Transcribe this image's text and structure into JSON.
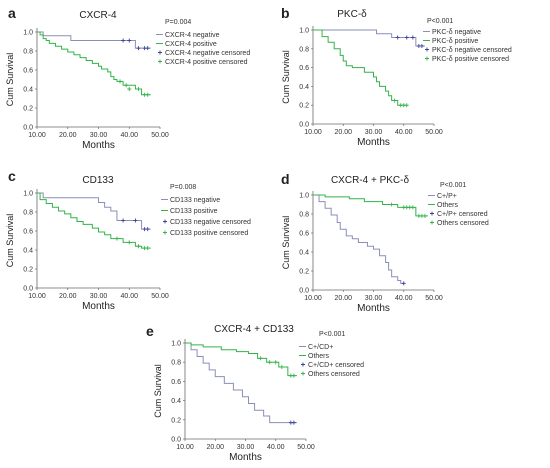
{
  "colors": {
    "negative": "#8a8fb8",
    "positive": "#33b34a",
    "censored_negative": "#3a3f9a",
    "censored_positive": "#33b34a",
    "axis": "#6a6a6a"
  },
  "chart_data": [
    {
      "type": "line",
      "panel_letter": "a",
      "title": "CXCR-4",
      "p_value": "P=0.004",
      "xlabel": "Months",
      "ylabel": "Cum Survival",
      "xlim": [
        10,
        50
      ],
      "ylim": [
        0,
        1
      ],
      "xticks": [
        "10.00",
        "20.00",
        "30.00",
        "40.00",
        "50.00"
      ],
      "yticks": [
        "0.0",
        "0.2",
        "0.4",
        "0.6",
        "0.8",
        "1.0"
      ],
      "legend": [
        "CXCR-4 negative",
        "CXCR-4 positive",
        "CXCR-4 negative censored",
        "CXCR-4 positive censored"
      ],
      "series": [
        {
          "name": "CXCR-4 negative",
          "role": "negative",
          "x": [
            10,
            11,
            12,
            20,
            21,
            36,
            42,
            47
          ],
          "y": [
            1.0,
            1.0,
            0.96,
            0.96,
            0.91,
            0.91,
            0.83,
            0.83
          ],
          "censored": [
            [
              38,
              0.91
            ],
            [
              40,
              0.91
            ],
            [
              43,
              0.83
            ],
            [
              45,
              0.83
            ],
            [
              46,
              0.83
            ]
          ]
        },
        {
          "name": "CXCR-4 positive",
          "role": "positive",
          "x": [
            10,
            11,
            12,
            13,
            14,
            16,
            18,
            20,
            22,
            24,
            26,
            28,
            30,
            31,
            33,
            34,
            35,
            36,
            38,
            42,
            44,
            47
          ],
          "y": [
            1.0,
            0.97,
            0.93,
            0.91,
            0.88,
            0.85,
            0.82,
            0.79,
            0.76,
            0.73,
            0.7,
            0.67,
            0.64,
            0.61,
            0.58,
            0.53,
            0.5,
            0.48,
            0.44,
            0.4,
            0.34,
            0.34
          ],
          "censored": [
            [
              37,
              0.48
            ],
            [
              39,
              0.44
            ],
            [
              40,
              0.4
            ],
            [
              43,
              0.4
            ],
            [
              45,
              0.34
            ],
            [
              46,
              0.34
            ]
          ]
        }
      ]
    },
    {
      "type": "line",
      "panel_letter": "b",
      "title": "PKC-δ",
      "p_value": "P<0.001",
      "xlabel": "Months",
      "ylabel": "Cum Survival",
      "xlim": [
        10,
        50
      ],
      "ylim": [
        0,
        1
      ],
      "xticks": [
        "10.00",
        "20.00",
        "30.00",
        "40.00",
        "50.00"
      ],
      "yticks": [
        "0.0",
        "0.2",
        "0.4",
        "0.6",
        "0.8",
        "1.0"
      ],
      "legend": [
        "PKC-δ negative",
        "PKC-δ positive",
        "PKC-δ negative censored",
        "PKC-δ positive censored"
      ],
      "series": [
        {
          "name": "PKC-δ negative",
          "role": "negative",
          "x": [
            10,
            30,
            31,
            34,
            36,
            40,
            44,
            47
          ],
          "y": [
            1.0,
            1.0,
            0.96,
            0.96,
            0.92,
            0.92,
            0.83,
            0.83
          ],
          "censored": [
            [
              38,
              0.92
            ],
            [
              41,
              0.92
            ],
            [
              43,
              0.92
            ],
            [
              45,
              0.83
            ],
            [
              46,
              0.83
            ]
          ]
        },
        {
          "name": "PKC-δ positive",
          "role": "positive",
          "x": [
            10,
            13,
            15,
            17,
            19,
            20,
            21,
            23,
            25,
            27,
            30,
            31,
            32,
            34,
            35,
            36,
            38,
            41
          ],
          "y": [
            1.0,
            0.93,
            0.87,
            0.8,
            0.73,
            0.67,
            0.62,
            0.6,
            0.6,
            0.55,
            0.5,
            0.45,
            0.4,
            0.35,
            0.3,
            0.25,
            0.2,
            0.2
          ],
          "censored": [
            [
              37,
              0.25
            ],
            [
              39,
              0.2
            ],
            [
              40,
              0.2
            ],
            [
              41,
              0.2
            ]
          ]
        }
      ]
    },
    {
      "type": "line",
      "panel_letter": "c",
      "title": "CD133",
      "p_value": "P=0.008",
      "xlabel": "Months",
      "ylabel": "Cum Survival",
      "xlim": [
        10,
        50
      ],
      "ylim": [
        0,
        1
      ],
      "xticks": [
        "10.00",
        "20.00",
        "30.00",
        "40.00",
        "50.00"
      ],
      "yticks": [
        "0.0",
        "0.2",
        "0.4",
        "0.6",
        "0.8",
        "1.0"
      ],
      "legend": [
        "CD133 negative",
        "CD133 positive",
        "CD133 negative censored",
        "CD133 positive censored"
      ],
      "series": [
        {
          "name": "CD133 negative",
          "role": "negative",
          "x": [
            10,
            12,
            28,
            30,
            32,
            34,
            36,
            40,
            44,
            47
          ],
          "y": [
            1.0,
            0.95,
            0.95,
            0.9,
            0.85,
            0.81,
            0.71,
            0.71,
            0.62,
            0.62
          ],
          "censored": [
            [
              38,
              0.71
            ],
            [
              42,
              0.71
            ],
            [
              45,
              0.62
            ],
            [
              46,
              0.62
            ]
          ]
        },
        {
          "name": "CD133 positive",
          "role": "positive",
          "x": [
            10,
            11,
            13,
            15,
            17,
            19,
            21,
            23,
            25,
            28,
            30,
            32,
            34,
            38,
            42,
            44,
            47
          ],
          "y": [
            1.0,
            0.93,
            0.89,
            0.85,
            0.81,
            0.78,
            0.74,
            0.7,
            0.67,
            0.63,
            0.59,
            0.56,
            0.52,
            0.48,
            0.44,
            0.42,
            0.42
          ],
          "censored": [
            [
              36,
              0.52
            ],
            [
              40,
              0.48
            ],
            [
              43,
              0.44
            ],
            [
              45,
              0.42
            ],
            [
              46,
              0.42
            ]
          ]
        }
      ]
    },
    {
      "type": "line",
      "panel_letter": "d",
      "title": "CXCR-4 + PKC-δ",
      "p_value": "P<0.001",
      "xlabel": "Months",
      "ylabel": "Cum Survival",
      "xlim": [
        10,
        50
      ],
      "ylim": [
        0,
        1
      ],
      "xticks": [
        "10.00",
        "20.00",
        "30.00",
        "40.00",
        "50.00"
      ],
      "yticks": [
        "0.0",
        "0.2",
        "0.4",
        "0.6",
        "0.8",
        "1.0"
      ],
      "legend": [
        "C+/P+",
        "Others",
        "C+/P+ censored",
        "Others censored"
      ],
      "series": [
        {
          "name": "C+/P+",
          "role": "negative",
          "x": [
            10,
            12,
            14,
            16,
            18,
            19,
            21,
            23,
            25,
            28,
            30,
            32,
            34,
            35,
            36,
            38,
            39,
            40
          ],
          "y": [
            1.0,
            0.93,
            0.86,
            0.79,
            0.71,
            0.64,
            0.57,
            0.54,
            0.5,
            0.46,
            0.43,
            0.36,
            0.29,
            0.21,
            0.14,
            0.1,
            0.07,
            0.07
          ],
          "censored": [
            [
              40,
              0.07
            ]
          ]
        },
        {
          "name": "Others",
          "role": "positive",
          "x": [
            10,
            14,
            22,
            27,
            33,
            38,
            44,
            48
          ],
          "y": [
            1.0,
            0.98,
            0.96,
            0.93,
            0.9,
            0.87,
            0.78,
            0.78
          ],
          "censored": [
            [
              36,
              0.9
            ],
            [
              40,
              0.87
            ],
            [
              41,
              0.87
            ],
            [
              42,
              0.87
            ],
            [
              43,
              0.87
            ],
            [
              45,
              0.78
            ],
            [
              46,
              0.78
            ],
            [
              47,
              0.78
            ]
          ]
        }
      ]
    },
    {
      "type": "line",
      "panel_letter": "e",
      "title": "CXCR-4 + CD133",
      "p_value": "P<0.001",
      "xlabel": "Months",
      "ylabel": "Cum Survival",
      "xlim": [
        10,
        50
      ],
      "ylim": [
        0,
        1
      ],
      "xticks": [
        "10.00",
        "20.00",
        "30.00",
        "40.00",
        "50.00"
      ],
      "yticks": [
        "0.0",
        "0.2",
        "0.4",
        "0.6",
        "0.8",
        "1.0"
      ],
      "legend": [
        "C+/CD+",
        "Others",
        "C+/CD+ censored",
        "Others censored"
      ],
      "series": [
        {
          "name": "C+/CD+",
          "role": "negative",
          "x": [
            10,
            12,
            14,
            16,
            18,
            20,
            23,
            26,
            29,
            31,
            33,
            36,
            38,
            47
          ],
          "y": [
            1.0,
            0.93,
            0.86,
            0.79,
            0.72,
            0.65,
            0.58,
            0.51,
            0.44,
            0.37,
            0.3,
            0.24,
            0.17,
            0.17
          ],
          "censored": [
            [
              45,
              0.17
            ],
            [
              46,
              0.17
            ]
          ]
        },
        {
          "name": "Others",
          "role": "positive",
          "x": [
            10,
            12,
            16,
            22,
            27,
            31,
            34,
            37,
            41,
            44,
            47
          ],
          "y": [
            1.0,
            0.98,
            0.96,
            0.93,
            0.91,
            0.89,
            0.84,
            0.8,
            0.75,
            0.66,
            0.66
          ],
          "censored": [
            [
              35,
              0.84
            ],
            [
              38,
              0.8
            ],
            [
              40,
              0.8
            ],
            [
              42,
              0.75
            ],
            [
              45,
              0.66
            ],
            [
              46,
              0.66
            ]
          ]
        }
      ]
    }
  ]
}
